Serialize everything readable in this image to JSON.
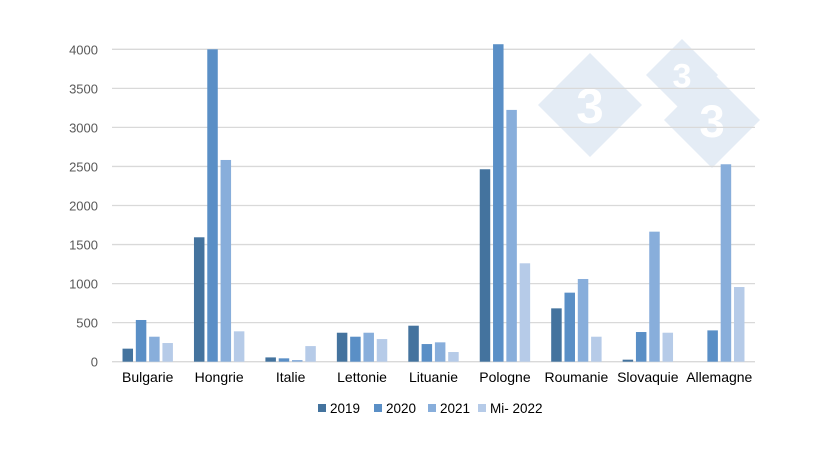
{
  "chart_data": {
    "type": "bar",
    "categories": [
      "Bulgarie",
      "Hongrie",
      "Italie",
      "Lettonie",
      "Lituanie",
      "Pologne",
      "Roumanie",
      "Slovaquie",
      "Allemagne"
    ],
    "series": [
      {
        "name": "2019",
        "color": "#44739e",
        "values": [
          167,
          1593,
          55,
          371,
          461,
          2464,
          683,
          26,
          null
        ]
      },
      {
        "name": "2020",
        "color": "#5a8fc6",
        "values": [
          534,
          4000,
          43,
          320,
          226,
          4065,
          884,
          380,
          401
        ]
      },
      {
        "name": "2021",
        "color": "#88aedb",
        "values": [
          320,
          2583,
          21,
          371,
          248,
          3224,
          1059,
          1665,
          2528
        ]
      },
      {
        "name": "Mi- 2022",
        "color": "#b6cbe8",
        "values": [
          239,
          389,
          200,
          290,
          124,
          1260,
          320,
          371,
          956
        ]
      }
    ],
    "yticks": [
      "0",
      "500",
      "1000",
      "1500",
      "2000",
      "2500",
      "3000",
      "3500",
      "4000"
    ],
    "ylim": [
      0,
      4000
    ],
    "grid": true,
    "legend": "bottom",
    "watermark": {
      "text": "3",
      "color": "#e4ecf5"
    }
  }
}
